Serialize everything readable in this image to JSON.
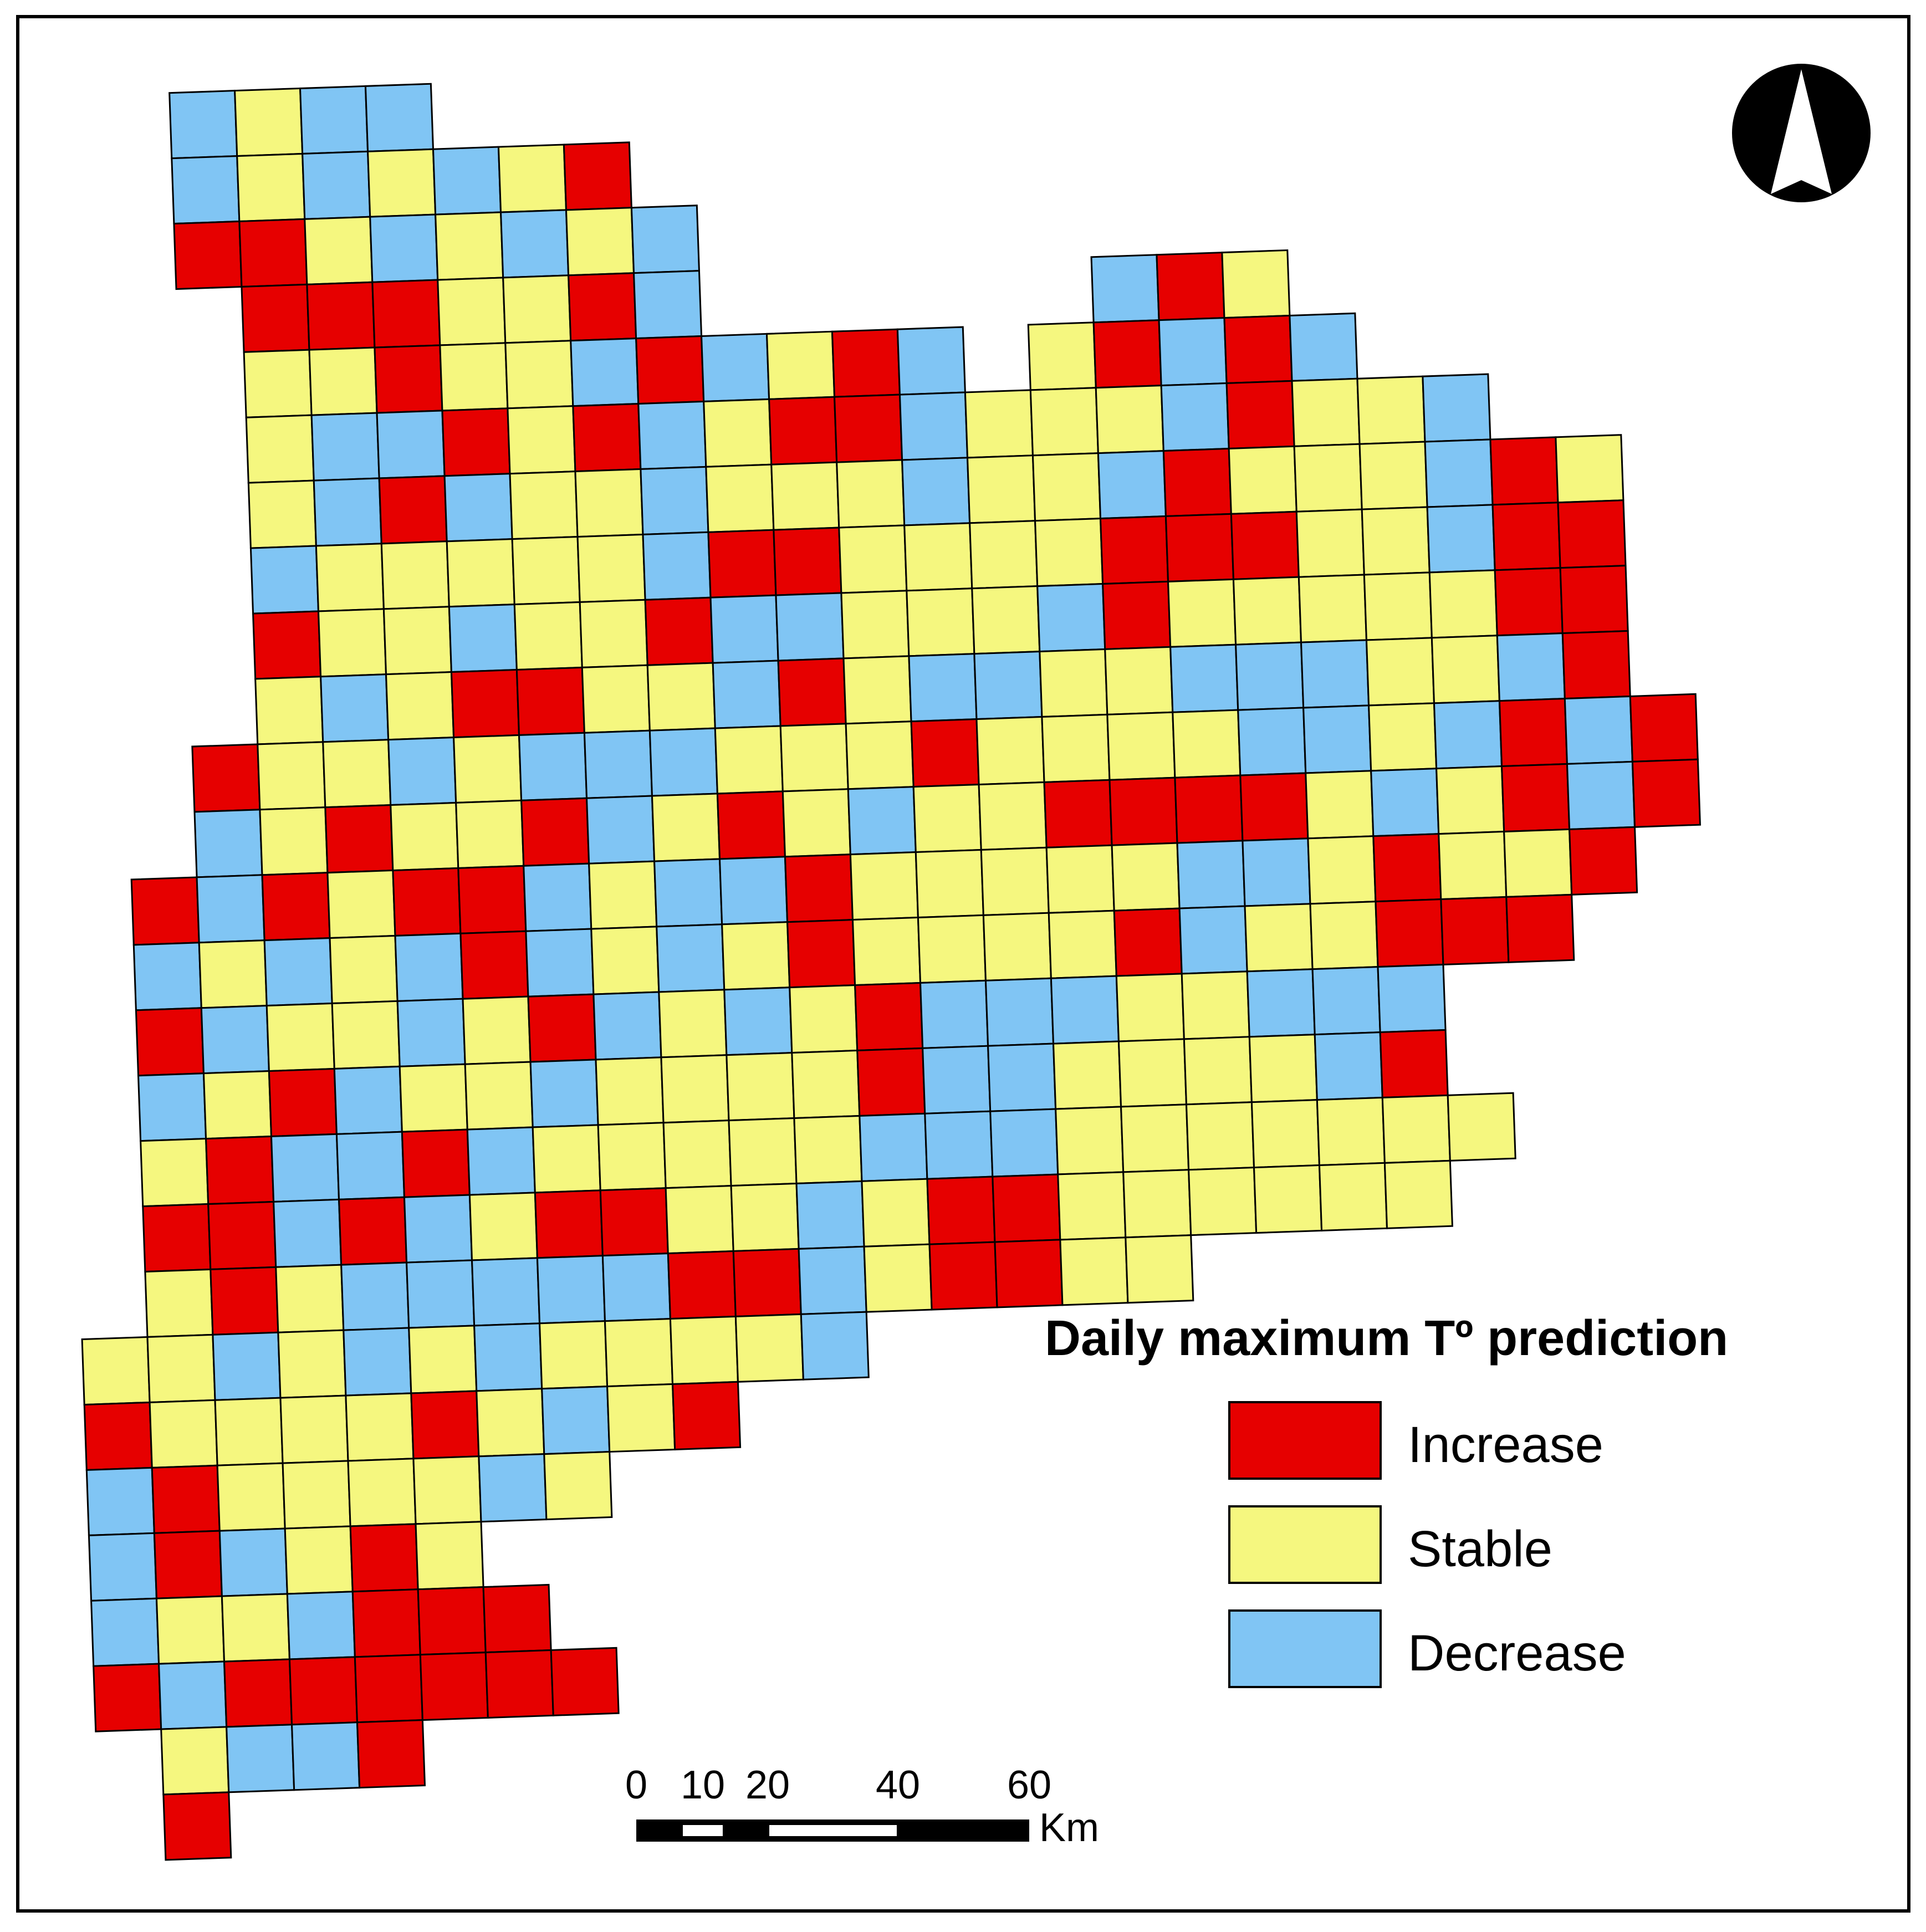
{
  "legend": {
    "title": "Daily maximum Tº  prediction",
    "items": [
      {
        "key": "I",
        "label": "Increase",
        "color": "#e60000"
      },
      {
        "key": "S",
        "label": "Stable",
        "color": "#f5f77f"
      },
      {
        "key": "D",
        "label": "Decrease",
        "color": "#80c5f4"
      }
    ]
  },
  "scale_bar": {
    "ticks": [
      "0",
      "10",
      "20",
      "40",
      "60"
    ],
    "unit": "Km"
  },
  "north_arrow": {
    "icon": "north-arrow-icon"
  },
  "grid": {
    "legend_keys": "I = Increase, S = Stable, D = Decrease, . = no cell",
    "rows": [
      "...DSDD..................",
      "...DSDSDSI...............",
      "...IISDSDSD..............",
      "....IIISSID......DIS.....",
      "....SSISSDIDSID.SIDID....",
      "....SDDISIDSIIDSSSDISSD..",
      "....SDIDSSDSSSDSSDISSSDIS",
      "....DSSSSSDIISSSSIIISSDII",
      "....ISSDSSIDDSSSDISSSSSII",
      "....SDSIISSDISDDSSDDDSSDI",
      "...ISSDSDDDSSSISSSSDDSDIDI",
      "...DSISSIDSISDSSIIIISDSIDI",
      "..IDISIIDSDDISSSSSDDSISSI",
      "..DSDSDIDSDSISSSSIDSSIII.",
      "..IDSSDSIDSDSIDDDSSDDD...",
      "..DSIDSSDSSSSIDDSSSSDI...",
      "..SIDDIDSSSSSDDDSSSSSSS..",
      "..IIDIDSIISSDSIISSSSSS...",
      "..SISDDDDDIIDSIISS.......",
      ".SSDSDSDSSSSD............",
      ".ISSSSISDSI..............",
      ".DISSSSDS................",
      ".DIDSIS..................",
      ".DSSDIII.................",
      ".IDIIIIII................",
      "..SDDI...................",
      "..I......................"
    ]
  }
}
